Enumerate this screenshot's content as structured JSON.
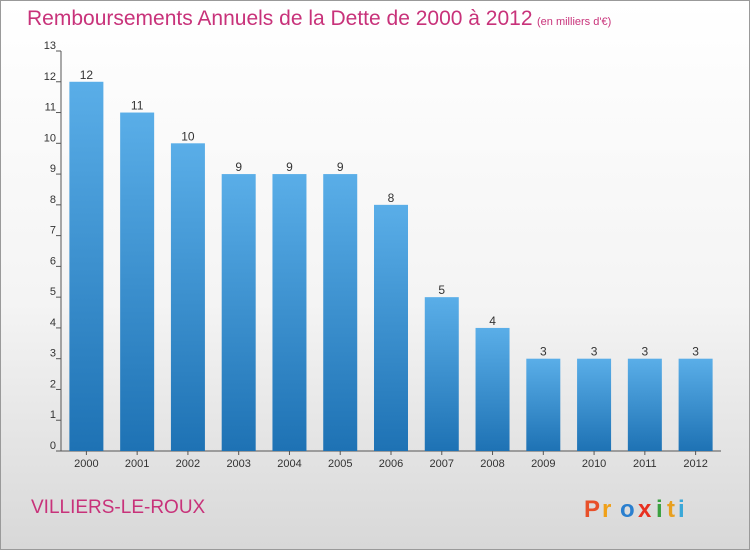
{
  "header": {
    "title": "Remboursements Annuels de la Dette de 2000 à 2012",
    "unit": "(en milliers d'€)"
  },
  "footer": {
    "commune": "VILLIERS-LE-ROUX",
    "logo_letters": [
      "P",
      "r",
      "o",
      "x",
      "i",
      "t",
      "i"
    ]
  },
  "colors": {
    "title": "#c8327a",
    "bar_light": "#5aaee8",
    "bar_dark": "#1e72b4",
    "logo": [
      "#e8502a",
      "#f0a018",
      "#2a7fcf",
      "#e83020",
      "#3aa040",
      "#e8a020",
      "#3aa8d8"
    ]
  },
  "chart_data": {
    "type": "bar",
    "title": "Remboursements Annuels de la Dette de 2000 à 2012",
    "subtitle": "(en milliers d'€)",
    "categories": [
      "2000",
      "2001",
      "2002",
      "2003",
      "2004",
      "2005",
      "2006",
      "2007",
      "2008",
      "2009",
      "2010",
      "2011",
      "2012"
    ],
    "values": [
      12,
      11,
      10,
      9,
      9,
      9,
      8,
      5,
      4,
      3,
      3,
      3,
      3
    ],
    "data_labels": [
      "12",
      "11",
      "10",
      "9",
      "9",
      "9",
      "8",
      "5",
      "4",
      "3",
      "3",
      "3",
      "3"
    ],
    "yticks": [
      "0",
      "1",
      "2",
      "3",
      "4",
      "5",
      "6",
      "7",
      "8",
      "9",
      "10",
      "11",
      "12",
      "13"
    ],
    "ylim": [
      0,
      13
    ],
    "xlabel": "",
    "ylabel": "",
    "grid": false,
    "legend": "none"
  }
}
